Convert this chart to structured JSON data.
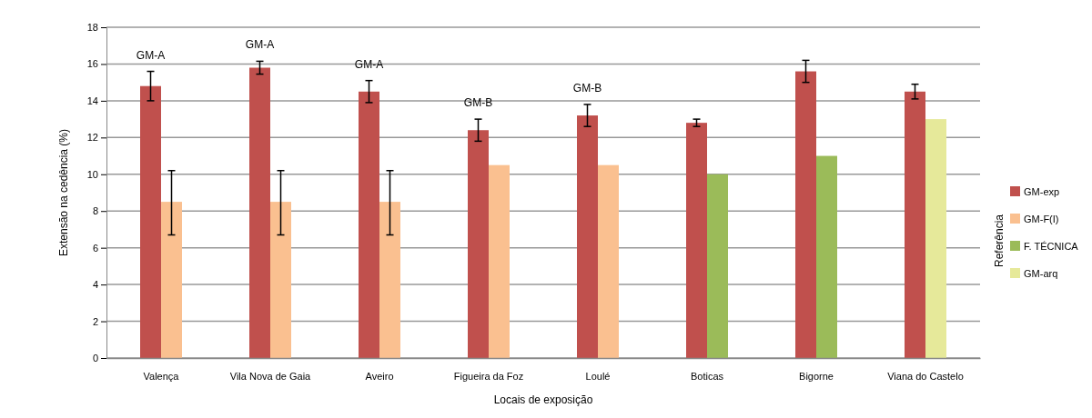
{
  "chart_data": {
    "type": "bar",
    "xlabel": "Locais de exposição",
    "ylabel": "Extensão na cedência (%)",
    "legend_title": "Referência",
    "categories": [
      "Valença",
      "Vila Nova de Gaia",
      "Aveiro",
      "Figueira da Foz",
      "Loulé",
      "Boticas",
      "Bigorne",
      "Viana do Castelo"
    ],
    "series": [
      {
        "name": "GM-exp",
        "color": "#c0504d",
        "values": [
          14.8,
          15.8,
          14.5,
          12.4,
          13.2,
          12.8,
          15.6,
          14.5
        ],
        "errors": [
          0.8,
          0.35,
          0.6,
          0.6,
          0.6,
          0.2,
          0.6,
          0.4
        ]
      },
      {
        "name": "GM-F(I)",
        "color": "#fac090",
        "values": [
          8.5,
          8.5,
          8.5,
          10.5,
          10.5,
          null,
          null,
          null
        ],
        "errors": [
          [
            6.7,
            10.2
          ],
          [
            6.7,
            10.2
          ],
          [
            6.7,
            10.2
          ],
          null,
          null,
          null,
          null,
          null
        ]
      },
      {
        "name": "F. TÉCNICA",
        "color": "#9bbb59",
        "values": [
          null,
          null,
          null,
          null,
          null,
          10,
          11,
          null
        ]
      },
      {
        "name": "GM-arq",
        "color": "#e6e99a",
        "values": [
          null,
          null,
          null,
          null,
          null,
          null,
          null,
          13
        ]
      }
    ],
    "ylim": [
      0,
      18
    ],
    "yticks": [
      0,
      2,
      4,
      6,
      8,
      10,
      12,
      14,
      16,
      18
    ],
    "grid": "y",
    "legend": "right",
    "annotations": [
      "GM-A",
      "GM-A",
      "GM-A",
      "GM-B",
      "GM-B"
    ]
  }
}
